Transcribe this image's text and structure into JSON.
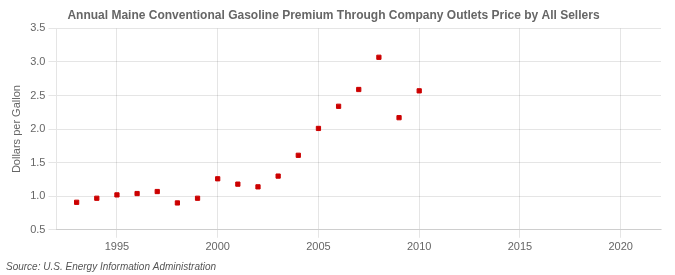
{
  "chart_data": {
    "type": "scatter",
    "title": "Annual Maine Conventional Gasoline Premium Through Company Outlets Price by All Sellers",
    "y_label": "Dollars per Gallon",
    "annotations": [
      "Source: U.S. Energy Information Administration"
    ],
    "x": [
      1993,
      1994,
      1995,
      1996,
      1997,
      1998,
      1999,
      2000,
      2001,
      2002,
      2003,
      2004,
      2005,
      2006,
      2007,
      2008,
      2009,
      2010
    ],
    "values": [
      0.91,
      0.97,
      1.02,
      1.04,
      1.07,
      0.9,
      0.97,
      1.26,
      1.18,
      1.14,
      1.3,
      1.61,
      2.01,
      2.34,
      2.59,
      3.07,
      2.17,
      2.57
    ],
    "color": "#cc0000",
    "marker": "square",
    "xlim": [
      1992,
      2022
    ],
    "ylim": [
      0.5,
      3.5
    ],
    "xticks": [
      1995,
      2000,
      2005,
      2010,
      2015,
      2020
    ],
    "yticks": [
      0.5,
      {
        "value": 1.0,
        "label": "1.0"
      },
      1.5,
      {
        "value": 2.0,
        "label": "2.0"
      },
      2.5,
      {
        "value": 3.0,
        "label": "3.0"
      },
      3.5
    ],
    "grid": true
  }
}
